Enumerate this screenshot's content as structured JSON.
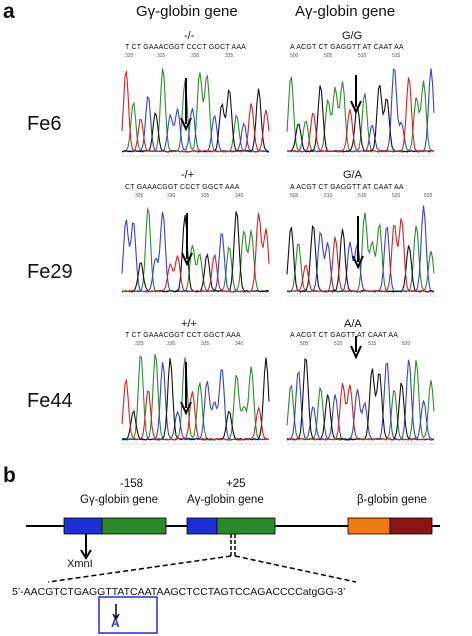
{
  "panel_a": {
    "letter": "a",
    "columns": [
      "Gγ-globin gene",
      "Aγ-globin gene"
    ],
    "rows": [
      {
        "sample": "Fe6",
        "g_genotype": "-/-",
        "a_genotype": "G/G",
        "g_seq": "T CT GAAACGGT CCCT GGCT AAA",
        "a_seq": "A ACGT CT GAGGTT AT CAAT AA",
        "g_ticks": [
          "320",
          "325",
          "330",
          "335"
        ],
        "a_ticks": [
          "500",
          "505",
          "510",
          "515"
        ]
      },
      {
        "sample": "Fe29",
        "g_genotype": "-/+",
        "a_genotype": "G/A",
        "g_seq": "CT GAAACGGT CCCT GGCT AAA",
        "a_seq": "A ACGT CT GAGGTT AT CAAT AA",
        "g_ticks": [
          "325",
          "330",
          "335",
          "340"
        ],
        "a_ticks": [
          "505",
          "510",
          "515",
          "520",
          "525"
        ]
      },
      {
        "sample": "Fe44",
        "g_genotype": "+/+",
        "a_genotype": "A/A",
        "g_seq": "T CT GAAACGGT CCT GGCT AAA",
        "a_seq": "A ACGT CT GAGTT AT CAAT AA",
        "g_ticks": [
          "325",
          "330",
          "335",
          "340"
        ],
        "a_ticks": [
          "505",
          "510",
          "515",
          "520"
        ]
      }
    ],
    "colors": {
      "A": "#2e8b2e",
      "C": "#3344cc",
      "G": "#111111",
      "T": "#d22222"
    }
  },
  "panel_b": {
    "letter": "b",
    "pos_g": "-158",
    "pos_a": "+25",
    "label_g": "Gγ-globin gene",
    "label_a": "Aγ-globin gene",
    "label_b": "β-globin gene",
    "xmn": "XmnI",
    "sequence": "5’-AACGTCTGAGGTTATCAATAAGCTCCTAGTCCAGACCCCatgGG-3’",
    "variant": "A",
    "colors": {
      "blue": "#1f2fd6",
      "green": "#2a8a2a",
      "orange": "#f07a10",
      "maroon": "#8a1414"
    }
  }
}
